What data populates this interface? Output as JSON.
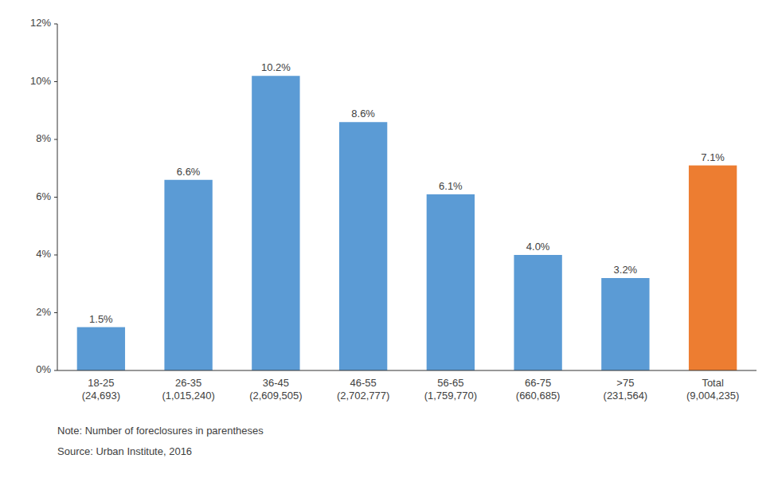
{
  "chart_data": {
    "type": "bar",
    "categories": [
      "18-25\n(24,693)",
      "26-35\n(1,015,240)",
      "36-45\n(2,609,505)",
      "46-55\n(2,702,777)",
      "56-65\n(1,759,770)",
      "66-75\n(660,685)",
      ">75\n(231,564)",
      "Total\n(9,004,235)"
    ],
    "values": [
      1.5,
      6.6,
      10.2,
      8.6,
      6.1,
      4.0,
      3.2,
      7.1
    ],
    "value_labels": [
      "1.5%",
      "6.6%",
      "10.2%",
      "8.6%",
      "6.1%",
      "4.0%",
      "3.2%",
      "7.1%"
    ],
    "data_labels": true,
    "colors": [
      "#5b9bd5",
      "#5b9bd5",
      "#5b9bd5",
      "#5b9bd5",
      "#5b9bd5",
      "#5b9bd5",
      "#5b9bd5",
      "#ed7d31"
    ],
    "ylim": [
      0,
      12
    ],
    "yticks": [
      {
        "value": 0,
        "label": "0%"
      },
      {
        "value": 2,
        "label": "2%"
      },
      {
        "value": 4,
        "label": "4%"
      },
      {
        "value": 6,
        "label": "6%"
      },
      {
        "value": 8,
        "label": "8%"
      },
      {
        "value": 10,
        "label": "10%"
      },
      {
        "value": 12,
        "label": "12%"
      }
    ],
    "grid": false,
    "annotations": [
      "Note: Number of foreclosures in parentheses",
      "Source: Urban Institute, 2016"
    ]
  }
}
